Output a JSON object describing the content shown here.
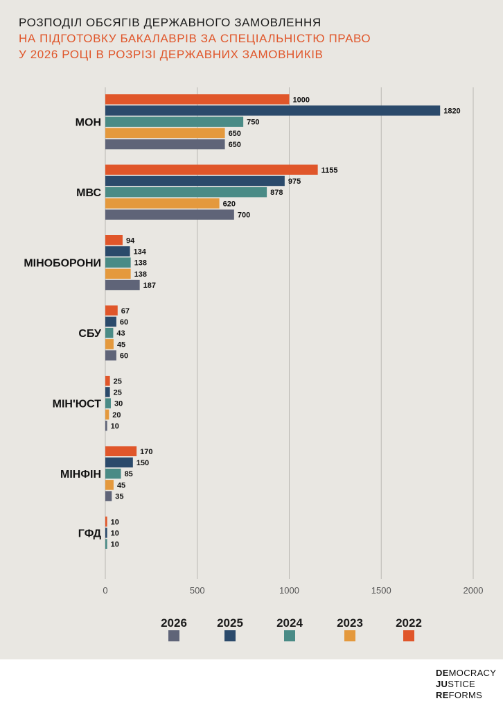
{
  "title": {
    "line1": "РОЗПОДІЛ ОБСЯГІВ ДЕРЖАВНОГО ЗАМОВЛЕННЯ",
    "line2": "НА ПІДГОТОВКУ БАКАЛАВРІВ ЗА СПЕЦІАЛЬНІСТЮ ПРАВО",
    "line3": "У 2026 РОЦІ В РОЗРІЗІ ДЕРЖАВНИХ ЗАМОВНИКІВ"
  },
  "colors": {
    "2022": "#e0562a",
    "2025": "#2b4a6b",
    "2024": "#4a8b86",
    "2023": "#e4993d",
    "2026": "#5f6478",
    "title_accent": "#e0562a",
    "background": "#e9e7e2"
  },
  "chart_data": {
    "type": "bar",
    "orientation": "horizontal",
    "categories": [
      "МОН",
      "МВС",
      "МІНОБОРОНИ",
      "СБУ",
      "МІН'ЮСТ",
      "МІНФІН",
      "ГФД"
    ],
    "series": [
      {
        "name": "2022",
        "values": [
          1000,
          1155,
          94,
          67,
          25,
          170,
          10
        ]
      },
      {
        "name": "2025",
        "values": [
          1820,
          975,
          134,
          60,
          25,
          150,
          10
        ]
      },
      {
        "name": "2024",
        "values": [
          750,
          878,
          138,
          43,
          30,
          85,
          10
        ]
      },
      {
        "name": "2023",
        "values": [
          650,
          620,
          138,
          45,
          20,
          45,
          null
        ]
      },
      {
        "name": "2026",
        "values": [
          650,
          700,
          187,
          60,
          10,
          35,
          null
        ]
      }
    ],
    "xlim": [
      0,
      2000
    ],
    "xticks": [
      "0",
      "500",
      "1000",
      "1500",
      "2000"
    ],
    "grid": "vertical",
    "legend": {
      "placement": "bottom",
      "order": [
        "2026",
        "2025",
        "2024",
        "2023",
        "2022"
      ]
    }
  },
  "logo": {
    "line1_bold": "DE",
    "line1_rest": "MOCRACY",
    "line2_bold": "JU",
    "line2_rest": "STICE",
    "line3_bold": "RE",
    "line3_rest": "FORMS"
  }
}
